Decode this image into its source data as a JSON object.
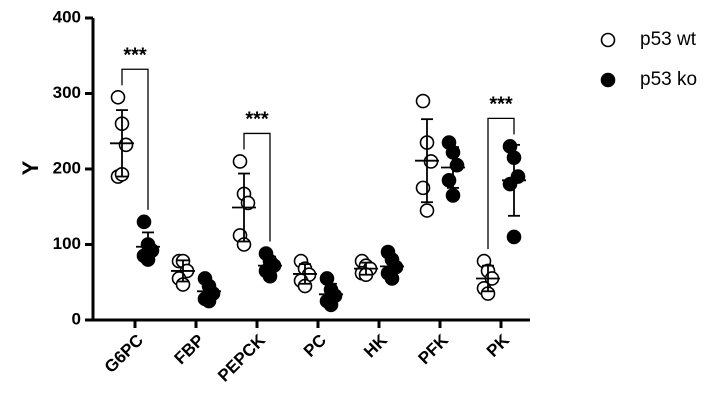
{
  "chart_data": {
    "type": "dot",
    "y_label": "Y",
    "categories": [
      "G6PC",
      "FBP",
      "PEPCK",
      "PC",
      "HK",
      "PFK",
      "PK"
    ],
    "ylim": [
      0,
      400
    ],
    "yticks": [
      0,
      100,
      200,
      300,
      400
    ],
    "series": [
      {
        "name": "p53 wt",
        "color": "#000000",
        "filled": false,
        "values": [
          [
            295,
            260,
            232,
            190,
            193
          ],
          [
            78,
            78,
            65,
            55,
            47
          ],
          [
            210,
            167,
            155,
            112,
            100
          ],
          [
            78,
            68,
            60,
            52,
            45
          ],
          [
            78,
            72,
            68,
            62,
            60
          ],
          [
            290,
            235,
            210,
            175,
            145
          ],
          [
            78,
            65,
            55,
            42,
            35
          ]
        ],
        "mean": [
          234,
          65,
          149,
          61,
          68,
          211,
          55
        ],
        "sd": [
          44,
          14,
          45,
          13,
          8,
          55,
          17
        ]
      },
      {
        "name": "p53 ko",
        "color": "#000000",
        "filled": true,
        "values": [
          [
            130,
            100,
            92,
            85,
            80
          ],
          [
            55,
            45,
            35,
            28,
            25
          ],
          [
            88,
            78,
            72,
            65,
            58
          ],
          [
            55,
            40,
            32,
            25,
            20
          ],
          [
            90,
            80,
            70,
            62,
            55
          ],
          [
            235,
            222,
            205,
            185,
            165
          ],
          [
            230,
            215,
            190,
            180,
            110
          ]
        ],
        "mean": [
          97,
          38,
          72,
          34,
          71,
          202,
          185
        ],
        "sd": [
          19,
          12,
          12,
          14,
          14,
          27,
          47
        ]
      }
    ],
    "annotations": [
      {
        "text": "***",
        "category": "G6PC"
      },
      {
        "text": "***",
        "category": "PEPCK"
      },
      {
        "text": "***",
        "category": "PK"
      }
    ]
  }
}
